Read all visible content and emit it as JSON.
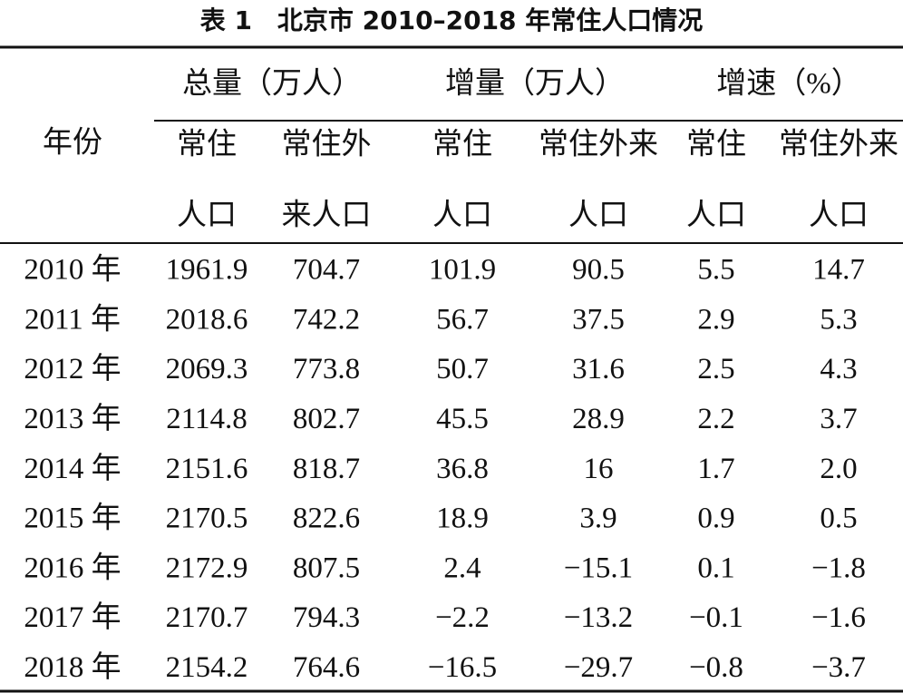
{
  "header": {
    "title": "表 1　北京市 2010–2018 年常住人口情况"
  },
  "table": {
    "row_header": "年份",
    "group_headers": [
      "总量（万人）",
      "增量（万人）",
      "增速（%）"
    ],
    "sub_headers": [
      [
        "常住",
        "人口"
      ],
      [
        "常住外",
        "来人口"
      ],
      [
        "常住",
        "人口"
      ],
      [
        "常住外来",
        "人口"
      ],
      [
        "常住",
        "人口"
      ],
      [
        "常住外来",
        "人口"
      ]
    ],
    "rows": [
      [
        "2010 年",
        "1961.9",
        "704.7",
        "101.9",
        "90.5",
        "5.5",
        "14.7"
      ],
      [
        "2011 年",
        "2018.6",
        "742.2",
        "56.7",
        "37.5",
        "2.9",
        "5.3"
      ],
      [
        "2012 年",
        "2069.3",
        "773.8",
        "50.7",
        "31.6",
        "2.5",
        "4.3"
      ],
      [
        "2013 年",
        "2114.8",
        "802.7",
        "45.5",
        "28.9",
        "2.2",
        "3.7"
      ],
      [
        "2014 年",
        "2151.6",
        "818.7",
        "36.8",
        "16",
        "1.7",
        "2.0"
      ],
      [
        "2015 年",
        "2170.5",
        "822.6",
        "18.9",
        "3.9",
        "0.9",
        "0.5"
      ],
      [
        "2016 年",
        "2172.9",
        "807.5",
        "2.4",
        "−15.1",
        "0.1",
        "−1.8"
      ],
      [
        "2017 年",
        "2170.7",
        "794.3",
        "−2.2",
        "−13.2",
        "−0.1",
        "−1.6"
      ],
      [
        "2018 年",
        "2154.2",
        "764.6",
        "−16.5",
        "−29.7",
        "−0.8",
        "−3.7"
      ]
    ]
  }
}
